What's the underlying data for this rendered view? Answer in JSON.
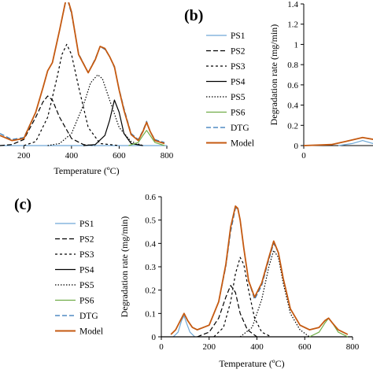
{
  "chart_data": [
    {
      "panel": "a",
      "type": "line",
      "xlabel": "Temperature (ºC)",
      "ylabel": "",
      "xlim": [
        100,
        800
      ],
      "ylim": [
        0,
        1.4
      ],
      "xticks": [
        200,
        400,
        600,
        800
      ],
      "xtick_labels": [
        "200",
        "400",
        "600",
        "800"
      ],
      "legend_position": "right",
      "series": [
        {
          "name": "PS1",
          "color": "#6fa8d6",
          "dash": "",
          "x": [
            100,
            800
          ],
          "y": [
            0,
            0
          ]
        },
        {
          "name": "PS2",
          "color": "#000000",
          "dash": "6,3",
          "x": [
            100,
            150,
            200,
            250,
            280,
            300,
            320,
            350,
            400,
            450,
            500
          ],
          "y": [
            0.0,
            0.01,
            0.06,
            0.28,
            0.43,
            0.49,
            0.45,
            0.28,
            0.07,
            0.01,
            0.0
          ]
        },
        {
          "name": "PS3",
          "color": "#000000",
          "dash": "3,3",
          "x": [
            200,
            250,
            300,
            340,
            360,
            380,
            400,
            430,
            470,
            520,
            600
          ],
          "y": [
            0.0,
            0.04,
            0.28,
            0.68,
            0.9,
            1.0,
            0.9,
            0.58,
            0.18,
            0.02,
            0.0
          ]
        },
        {
          "name": "PS4",
          "color": "#000000",
          "dash": "",
          "x": [
            450,
            500,
            540,
            560,
            580,
            600,
            620,
            650,
            700
          ],
          "y": [
            0.0,
            0.01,
            0.1,
            0.25,
            0.45,
            0.33,
            0.12,
            0.02,
            0.0
          ]
        },
        {
          "name": "PS5",
          "color": "#000000",
          "dash": "1.5,2",
          "x": [
            300,
            350,
            400,
            450,
            480,
            510,
            530,
            560,
            600,
            650,
            700
          ],
          "y": [
            0.0,
            0.02,
            0.12,
            0.4,
            0.62,
            0.7,
            0.66,
            0.45,
            0.18,
            0.04,
            0.0
          ]
        },
        {
          "name": "PS6",
          "color": "#70ad47",
          "dash": "",
          "x": [
            640,
            680,
            700,
            715,
            730,
            750,
            790
          ],
          "y": [
            0.0,
            0.03,
            0.1,
            0.15,
            0.1,
            0.03,
            0.0
          ]
        },
        {
          "name": "DTG",
          "color": "#2e75b6",
          "dash": "6,3",
          "x": [
            100,
            150,
            200,
            250,
            280,
            300,
            320,
            350,
            380,
            400,
            430,
            470,
            500,
            520,
            540,
            560,
            580,
            600,
            620,
            650,
            680,
            700,
            715,
            730,
            750,
            790
          ],
          "y": [
            0.12,
            0.06,
            0.08,
            0.33,
            0.57,
            0.74,
            0.82,
            1.14,
            1.47,
            1.3,
            0.91,
            0.72,
            0.86,
            0.98,
            0.95,
            0.88,
            0.77,
            0.56,
            0.37,
            0.12,
            0.06,
            0.15,
            0.24,
            0.14,
            0.06,
            0.03
          ]
        },
        {
          "name": "Model",
          "color": "#c55a11",
          "dash": "",
          "x": [
            100,
            150,
            200,
            250,
            280,
            300,
            320,
            350,
            380,
            400,
            430,
            470,
            500,
            520,
            540,
            560,
            580,
            600,
            620,
            650,
            680,
            700,
            715,
            730,
            750,
            790
          ],
          "y": [
            0.1,
            0.05,
            0.07,
            0.33,
            0.57,
            0.74,
            0.82,
            1.14,
            1.48,
            1.32,
            0.9,
            0.72,
            0.85,
            0.98,
            0.96,
            0.88,
            0.78,
            0.55,
            0.35,
            0.11,
            0.05,
            0.14,
            0.23,
            0.14,
            0.05,
            0.02
          ]
        }
      ]
    },
    {
      "panel": "b",
      "type": "line",
      "xlabel": "",
      "ylabel": "Degradation rate (mg/min)",
      "xlim": [
        0,
        800
      ],
      "ylim": [
        0,
        1.4
      ],
      "yticks": [
        0,
        0.2,
        0.4,
        0.6,
        0.8,
        1.0,
        1.2,
        1.4
      ],
      "ytick_labels": [
        "0",
        "0.2",
        "0.4",
        "0.6",
        "0.8",
        "1",
        "1.2",
        "1.4"
      ],
      "xticks": [
        0
      ],
      "xtick_labels": [
        "0"
      ],
      "series": [
        {
          "name": "PS1",
          "color": "#6fa8d6",
          "dash": "",
          "x": [
            50,
            70,
            85,
            100,
            120
          ],
          "y": [
            0.0,
            0.02,
            0.05,
            0.02,
            0.0
          ]
        },
        {
          "name": "DTG",
          "color": "#2e75b6",
          "dash": "6,3",
          "x": [
            0,
            40,
            60,
            85,
            110,
            130,
            150,
            180,
            200
          ],
          "y": [
            0.0,
            0.01,
            0.04,
            0.08,
            0.05,
            0.04,
            0.05,
            0.08,
            0.13
          ]
        },
        {
          "name": "Model",
          "color": "#c55a11",
          "dash": "",
          "x": [
            0,
            40,
            60,
            85,
            110,
            130,
            150,
            180,
            200
          ],
          "y": [
            0.0,
            0.01,
            0.04,
            0.08,
            0.05,
            0.04,
            0.05,
            0.08,
            0.13
          ]
        }
      ]
    },
    {
      "panel": "c",
      "type": "line",
      "xlabel": "Temperature (ºC)",
      "ylabel": "Degradation rate (mg/min)",
      "xlim": [
        0,
        800
      ],
      "ylim": [
        0,
        0.6
      ],
      "yticks": [
        0,
        0.1,
        0.2,
        0.3,
        0.4,
        0.5,
        0.6
      ],
      "ytick_labels": [
        "0",
        "0.1",
        "0.2",
        "0.3",
        "0.4",
        "0.5",
        "0.6"
      ],
      "xticks": [
        0,
        200,
        400,
        600,
        800
      ],
      "xtick_labels": [
        "0",
        "200",
        "400",
        "600",
        "800"
      ],
      "legend_position": "left",
      "series": [
        {
          "name": "PS1",
          "color": "#6fa8d6",
          "dash": "",
          "x": [
            50,
            70,
            85,
            95,
            105,
            120,
            140
          ],
          "y": [
            0.0,
            0.02,
            0.07,
            0.09,
            0.06,
            0.02,
            0.0
          ]
        },
        {
          "name": "PS2",
          "color": "#000000",
          "dash": "6,3",
          "x": [
            150,
            200,
            240,
            270,
            290,
            310,
            330,
            360,
            400
          ],
          "y": [
            0.0,
            0.02,
            0.08,
            0.17,
            0.22,
            0.19,
            0.1,
            0.03,
            0.0
          ]
        },
        {
          "name": "PS3",
          "color": "#000000",
          "dash": "3,3",
          "x": [
            220,
            260,
            290,
            310,
            330,
            345,
            365,
            390,
            420,
            460
          ],
          "y": [
            0.0,
            0.04,
            0.15,
            0.27,
            0.34,
            0.31,
            0.2,
            0.08,
            0.02,
            0.0
          ]
        },
        {
          "name": "PS4",
          "color": "#000000",
          "dash": "",
          "x": [
            0,
            800
          ],
          "y": [
            0,
            0
          ]
        },
        {
          "name": "PS5",
          "color": "#000000",
          "dash": "1.5,2",
          "x": [
            330,
            380,
            420,
            450,
            470,
            490,
            510,
            540,
            580,
            620
          ],
          "y": [
            0.0,
            0.04,
            0.16,
            0.3,
            0.37,
            0.34,
            0.23,
            0.1,
            0.03,
            0.0
          ]
        },
        {
          "name": "PS6",
          "color": "#70ad47",
          "dash": "",
          "x": [
            620,
            660,
            685,
            700,
            715,
            740,
            780
          ],
          "y": [
            0.0,
            0.02,
            0.06,
            0.08,
            0.06,
            0.02,
            0.0
          ]
        },
        {
          "name": "DTG",
          "color": "#2e75b6",
          "dash": "6,3",
          "x": [
            40,
            60,
            80,
            95,
            110,
            130,
            150,
            200,
            240,
            270,
            290,
            310,
            320,
            330,
            345,
            365,
            390,
            420,
            450,
            470,
            490,
            510,
            540,
            580,
            620,
            660,
            685,
            700,
            715,
            740,
            780
          ],
          "y": [
            0.01,
            0.03,
            0.07,
            0.1,
            0.07,
            0.04,
            0.03,
            0.05,
            0.15,
            0.3,
            0.45,
            0.55,
            0.55,
            0.5,
            0.38,
            0.24,
            0.16,
            0.22,
            0.33,
            0.4,
            0.36,
            0.25,
            0.12,
            0.05,
            0.03,
            0.04,
            0.07,
            0.08,
            0.06,
            0.03,
            0.01
          ]
        },
        {
          "name": "Model",
          "color": "#c55a11",
          "dash": "",
          "x": [
            40,
            60,
            80,
            95,
            110,
            130,
            150,
            200,
            240,
            270,
            290,
            310,
            320,
            330,
            345,
            365,
            390,
            420,
            450,
            470,
            490,
            510,
            540,
            580,
            620,
            660,
            685,
            700,
            715,
            740,
            780
          ],
          "y": [
            0.01,
            0.03,
            0.07,
            0.1,
            0.07,
            0.04,
            0.03,
            0.05,
            0.15,
            0.31,
            0.47,
            0.56,
            0.55,
            0.5,
            0.38,
            0.24,
            0.17,
            0.23,
            0.34,
            0.41,
            0.36,
            0.25,
            0.12,
            0.05,
            0.03,
            0.04,
            0.07,
            0.08,
            0.06,
            0.03,
            0.01
          ]
        }
      ]
    }
  ],
  "labels": {
    "panel_b": "(b)",
    "panel_c": "(c)"
  }
}
